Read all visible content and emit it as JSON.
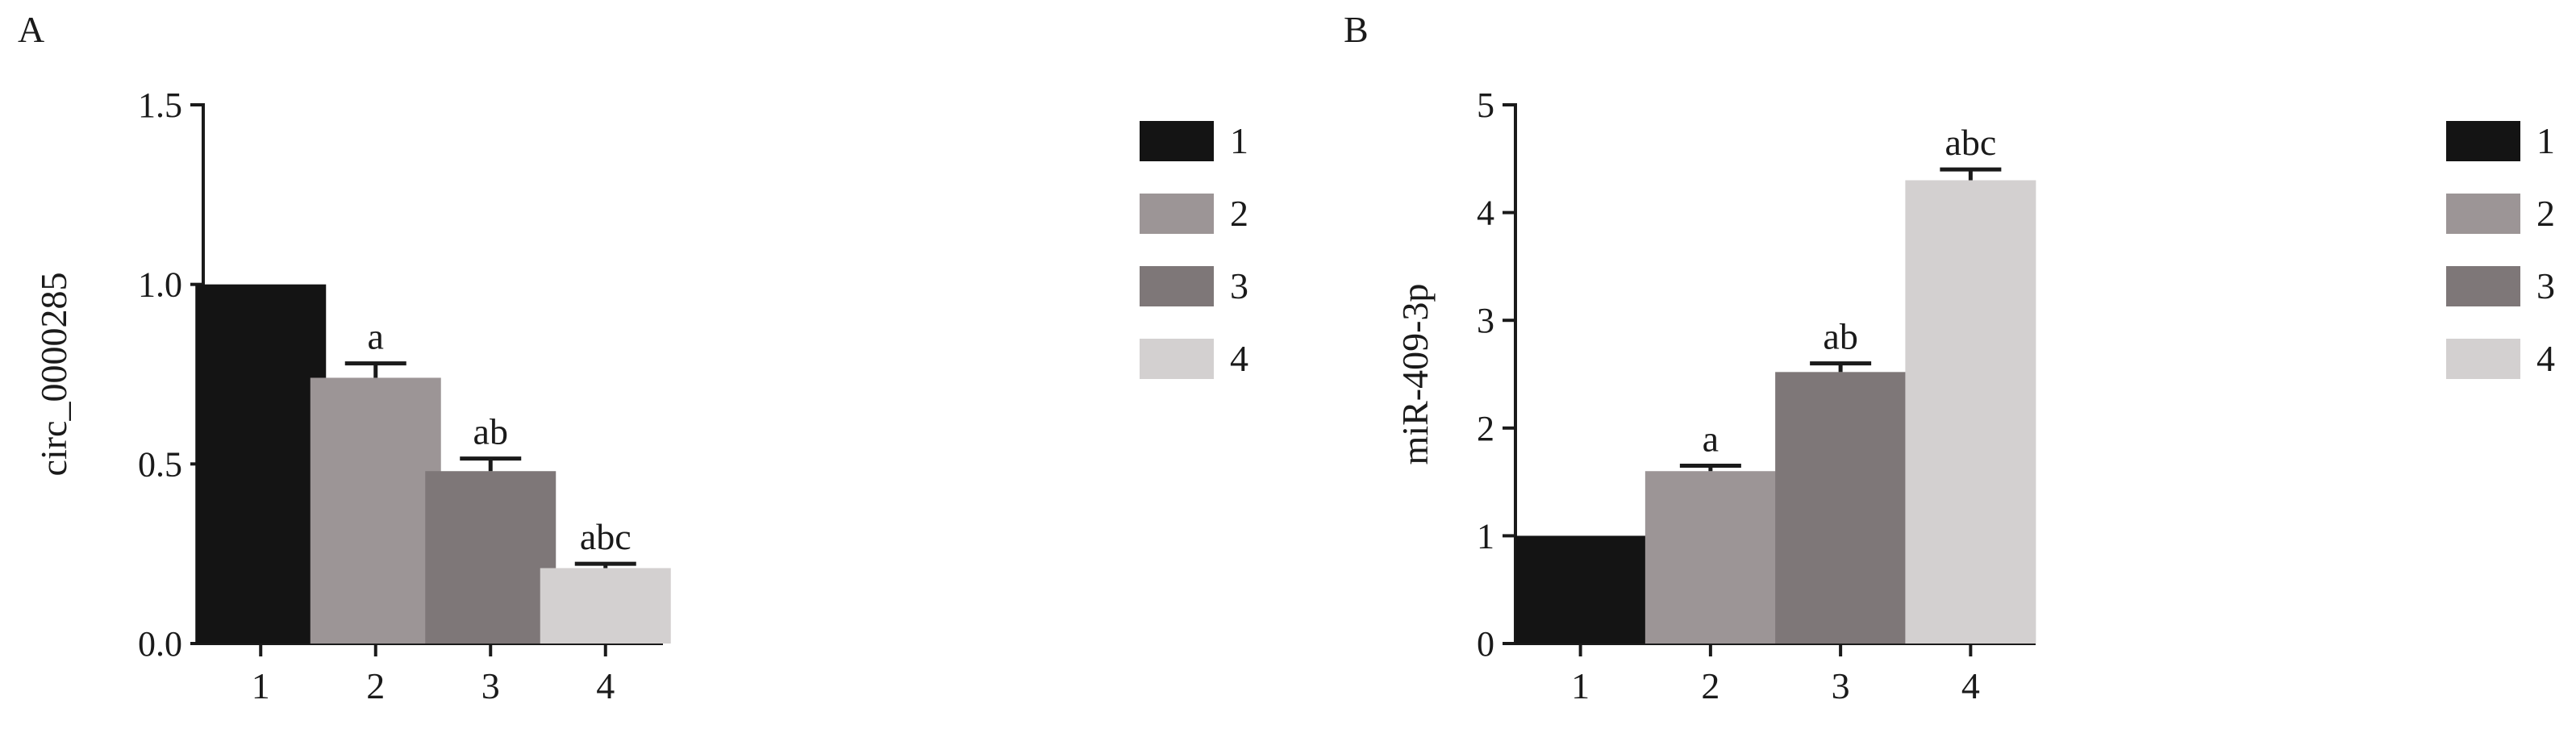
{
  "chart_data": [
    {
      "panel_label": "A",
      "type": "bar",
      "title": "",
      "xlabel": "",
      "ylabel": "circ_0000285",
      "categories": [
        "1",
        "2",
        "3",
        "4"
      ],
      "values": [
        1.0,
        0.74,
        0.48,
        0.21
      ],
      "errors": [
        0,
        0.04,
        0.035,
        0.012
      ],
      "annotations": [
        "",
        "a",
        "ab",
        "abc"
      ],
      "ylim": [
        0,
        1.5
      ],
      "yticks": [
        0,
        0.5,
        1.0,
        1.5
      ],
      "ytick_labels": [
        "0.0",
        "0.5",
        "1.0",
        "1.5"
      ],
      "colors": [
        "#141414",
        "#9c9596",
        "#7e7778",
        "#d3d0d0"
      ],
      "legend": {
        "placement": "right",
        "entries": [
          "1",
          "2",
          "3",
          "4"
        ]
      }
    },
    {
      "panel_label": "B",
      "type": "bar",
      "title": "",
      "xlabel": "",
      "ylabel": "miR-409-3p",
      "categories": [
        "1",
        "2",
        "3",
        "4"
      ],
      "values": [
        1.0,
        1.6,
        2.52,
        4.3
      ],
      "errors": [
        0,
        0.05,
        0.08,
        0.1
      ],
      "annotations": [
        "",
        "a",
        "ab",
        "abc"
      ],
      "ylim": [
        0,
        5
      ],
      "yticks": [
        0,
        1,
        2,
        3,
        4,
        5
      ],
      "ytick_labels": [
        "0",
        "1",
        "2",
        "3",
        "4",
        "5"
      ],
      "colors": [
        "#141414",
        "#9c9596",
        "#7e7778",
        "#d3d0d0"
      ],
      "legend": {
        "placement": "right",
        "entries": [
          "1",
          "2",
          "3",
          "4"
        ]
      }
    }
  ]
}
